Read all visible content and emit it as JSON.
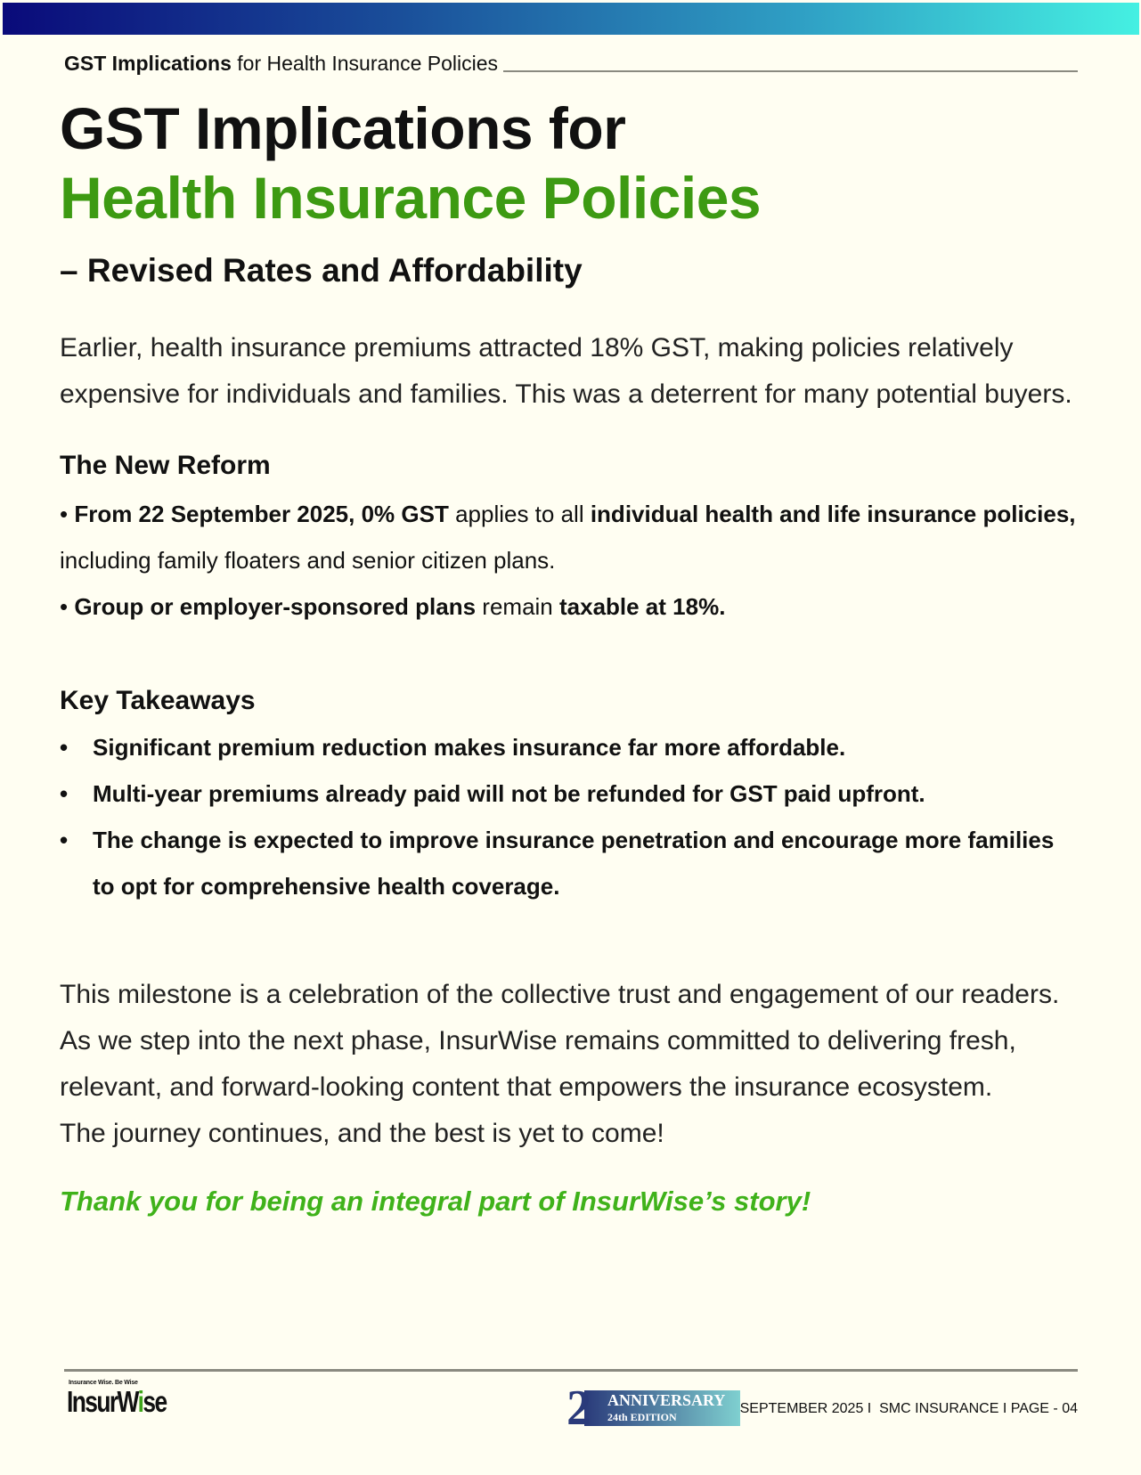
{
  "colors": {
    "accent_green": "#3d9a12",
    "thanks_green": "#3fb21a",
    "top_bar_gradient": [
      "#0a0a7a",
      "#45f0e2"
    ],
    "background": "#fffef2"
  },
  "running_header": {
    "bold": "GST Implications",
    "rest": " for Health Insurance Policies"
  },
  "title": {
    "line1": "GST Implications for",
    "line2": "Health Insurance Policies",
    "subtitle": "– Revised Rates and Affordability"
  },
  "intro": "Earlier, health insurance premiums attracted 18% GST, making policies relatively expensive for individuals and families. This was a deterrent for many potential buyers.",
  "reform": {
    "heading": "The New Reform",
    "bullet1": {
      "b1": "From 22 September 2025, 0% GST",
      "t1": " applies to all ",
      "b2": "individual health and life insurance policies,",
      "t2": " including family floaters and senior citizen plans."
    },
    "bullet2": {
      "b1": "Group or employer-sponsored plans",
      "t1": " remain ",
      "b2": "taxable at 18%."
    }
  },
  "takeaways": {
    "heading": "Key Takeaways",
    "items": [
      "Significant premium reduction makes insurance far more affordable.",
      "Multi-year premiums already paid will not be refunded for GST paid upfront.",
      "The change is expected to improve insurance penetration and encourage more families to opt for comprehensive health coverage."
    ]
  },
  "closing": {
    "p1": "This milestone is a celebration of the collective trust and engagement of our readers. As we step into the next phase, InsurWise remains committed to delivering fresh, relevant, and forward-looking content that empowers the insurance ecosystem.",
    "p2": "The journey continues, and the best is yet to come!"
  },
  "thanks": "Thank you for being an integral part of InsurWise’s story!",
  "footer": {
    "logo": {
      "tagline": "Insurance Wise. Be Wise",
      "name_a": "InsurW",
      "name_i": "i",
      "name_b": "se"
    },
    "badge": {
      "number": "2",
      "title": "ANNIVERSARY",
      "edition": "24th EDITION"
    },
    "text": "SEPTEMBER 2025 I  SMC INSURANCE I PAGE - 04"
  }
}
